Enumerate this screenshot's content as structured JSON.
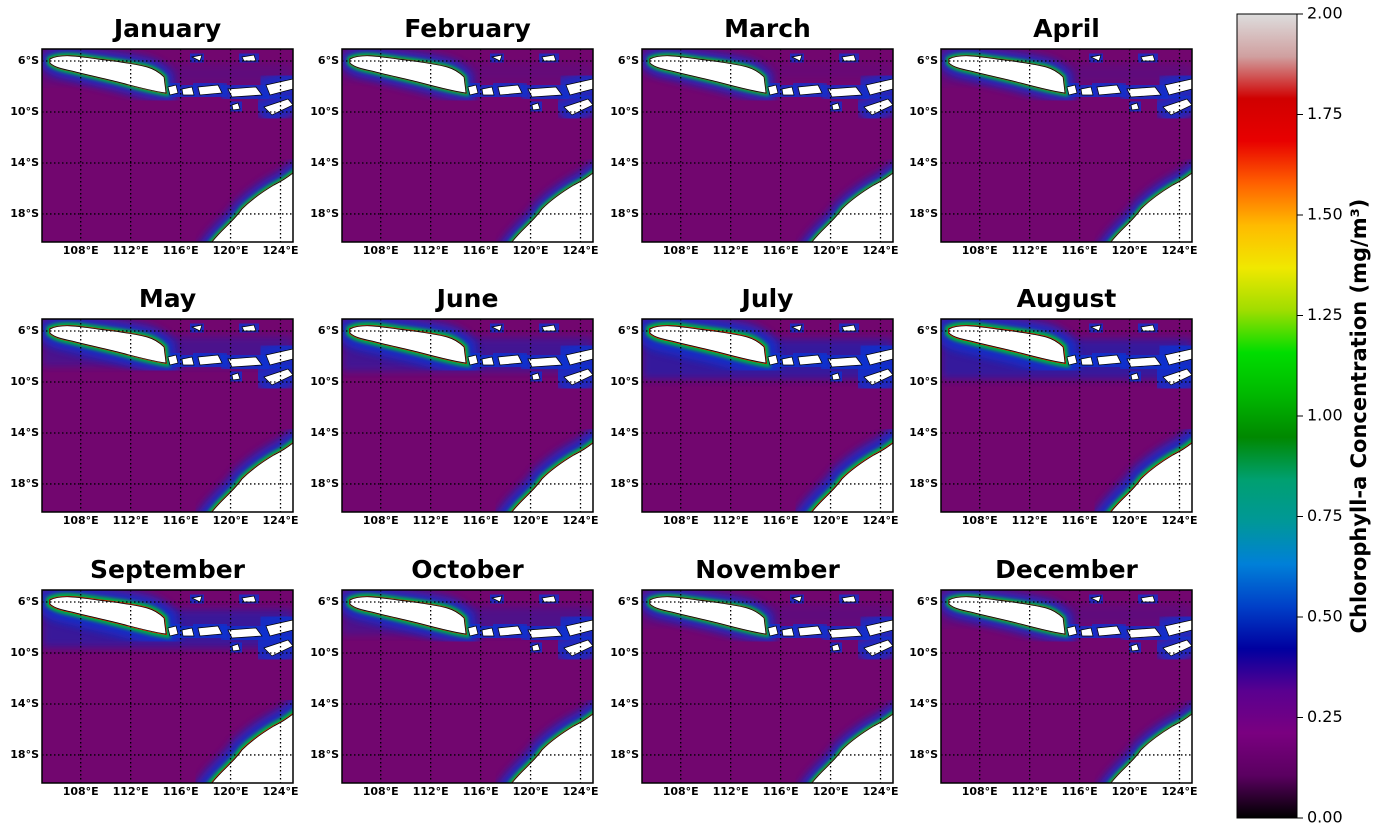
{
  "panels": [
    {
      "title": "January"
    },
    {
      "title": "February"
    },
    {
      "title": "March"
    },
    {
      "title": "April"
    },
    {
      "title": "May"
    },
    {
      "title": "June"
    },
    {
      "title": "July"
    },
    {
      "title": "August"
    },
    {
      "title": "September"
    },
    {
      "title": "October"
    },
    {
      "title": "November"
    },
    {
      "title": "December"
    }
  ],
  "map": {
    "xlim": [
      104.9,
      125.0
    ],
    "ylim": [
      -20.2,
      -5.06
    ],
    "xticks": [
      {
        "value": 108,
        "label": "108°E"
      },
      {
        "value": 112,
        "label": "112°E"
      },
      {
        "value": 116,
        "label": "116°E"
      },
      {
        "value": 120,
        "label": "120°E"
      },
      {
        "value": 124,
        "label": "124°E"
      }
    ],
    "yticks": [
      {
        "value": -6,
        "label": "6°S"
      },
      {
        "value": -10,
        "label": "10°S"
      },
      {
        "value": -14,
        "label": "14°S"
      },
      {
        "value": -18,
        "label": "18°S"
      }
    ],
    "ocean_color": "#72066f",
    "land_color": "#ffffff"
  },
  "colorbar": {
    "label": "Chlorophyll-a Concentration (mg/m³)",
    "lim": [
      0,
      2
    ],
    "ticks": [
      {
        "value": 0,
        "label": "0.00"
      },
      {
        "value": 0.25,
        "label": "0.25"
      },
      {
        "value": 0.5,
        "label": "0.50"
      },
      {
        "value": 0.75,
        "label": "0.75"
      },
      {
        "value": 1,
        "label": "1.00"
      },
      {
        "value": 1.25,
        "label": "1.25"
      },
      {
        "value": 1.5,
        "label": "1.50"
      },
      {
        "value": 1.75,
        "label": "1.75"
      },
      {
        "value": 2,
        "label": "2.00"
      }
    ],
    "colors": [
      "#000000",
      "#5a0060",
      "#7a0080",
      "#5a0090",
      "#0000a0",
      "#0040c8",
      "#0080d8",
      "#009898",
      "#00a070",
      "#008800",
      "#00b800",
      "#00dd00",
      "#a0dd00",
      "#f0e800",
      "#ffbb00",
      "#ff6000",
      "#e80000",
      "#d00000",
      "#d0a0a0",
      "#dddddd"
    ]
  }
}
